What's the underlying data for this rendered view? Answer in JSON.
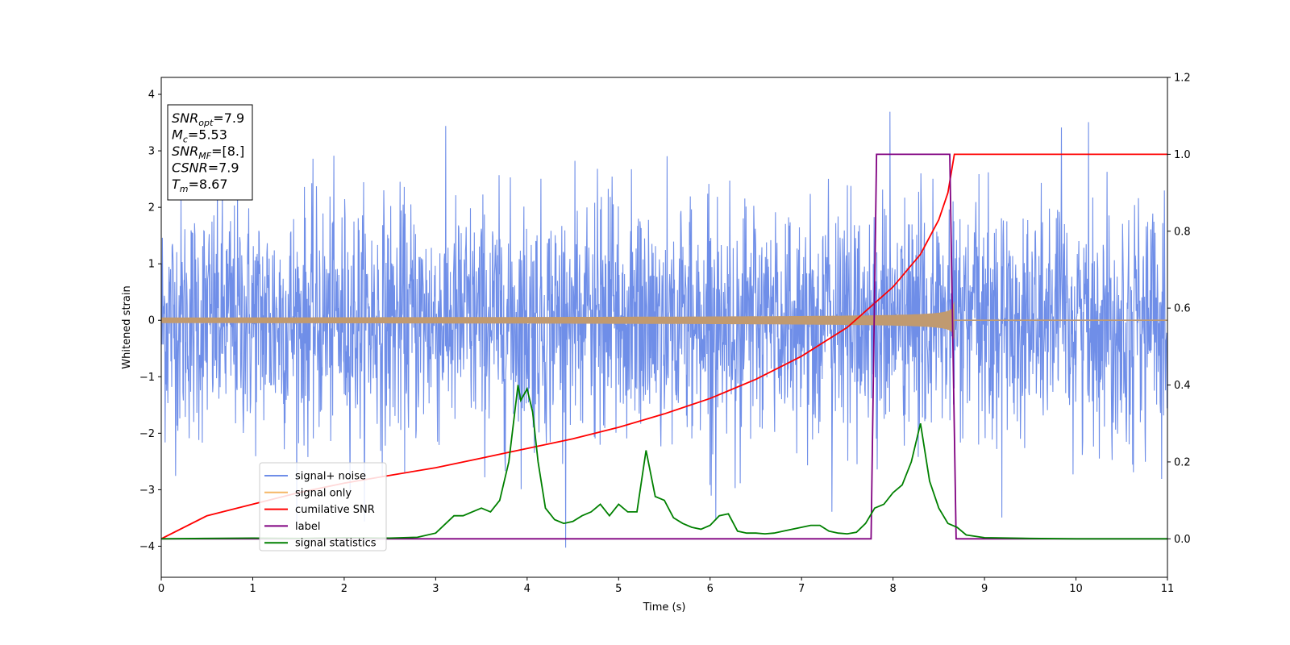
{
  "chart_data": {
    "type": "line",
    "xlabel": "Time (s)",
    "ylabel": "Whitened strain",
    "xlim": [
      0,
      11
    ],
    "ylim": [
      -4.55,
      4.3
    ],
    "y2lim": [
      -0.1,
      1.2
    ],
    "xticks": [
      0,
      1,
      2,
      3,
      4,
      5,
      6,
      7,
      8,
      9,
      10,
      11
    ],
    "xtick_labels": [
      "0",
      "1",
      "2",
      "3",
      "4",
      "5",
      "6",
      "7",
      "8",
      "9",
      "10",
      "11"
    ],
    "yticks": [
      4,
      3,
      2,
      1,
      0,
      -1,
      -2,
      -3,
      -4
    ],
    "ytick_labels": [
      "4",
      "3",
      "2",
      "1",
      "0",
      "−1",
      "−2",
      "−3",
      "−4"
    ],
    "y2ticks": [
      1.2,
      1.0,
      0.8,
      0.6,
      0.4,
      0.2,
      0.0
    ],
    "y2tick_labels": [
      "1.2",
      "1.0",
      "0.8",
      "0.6",
      "0.4",
      "0.2",
      "0.0"
    ],
    "grid": false,
    "legend_placement": "lower-left",
    "annotation": {
      "lines": [
        {
          "base": "SNR",
          "sub": "opt",
          "rest": "=7.9"
        },
        {
          "base": "M",
          "sub": "c",
          "rest": "=5.53"
        },
        {
          "base": "SNR",
          "sub": "MF",
          "rest": "=[8.]"
        },
        {
          "base": "CSNR",
          "sub": "",
          "rest": "=7.9"
        },
        {
          "base": "T",
          "sub": "m",
          "rest": "=8.67"
        }
      ]
    },
    "series": [
      {
        "name": "signal+ noise",
        "axis": "left",
        "color": "#6f8ee8",
        "noise": {
          "t_start": 0,
          "t_end": 11,
          "std": 1.0,
          "peak_max": 3.88,
          "peak_min": -4.15
        }
      },
      {
        "name": "signal only",
        "axis": "left",
        "color": "#f5b766",
        "chirp": {
          "t_start": 0,
          "t_merge": 8.67,
          "t_end": 11,
          "amp_start": 0.05,
          "amp_merge": 0.65
        }
      },
      {
        "name": "cumilative SNR",
        "axis": "right",
        "color": "#ff0000",
        "x": [
          0,
          0.5,
          1,
          1.5,
          2,
          2.5,
          3,
          3.5,
          4,
          4.5,
          5,
          5.5,
          6,
          6.5,
          7,
          7.5,
          8,
          8.3,
          8.5,
          8.6,
          8.67,
          9,
          10,
          11
        ],
        "y": [
          0.0,
          0.06,
          0.09,
          0.12,
          0.145,
          0.165,
          0.185,
          0.21,
          0.235,
          0.26,
          0.29,
          0.325,
          0.365,
          0.415,
          0.475,
          0.55,
          0.655,
          0.74,
          0.83,
          0.9,
          1.0,
          1.0,
          1.0,
          1.0
        ]
      },
      {
        "name": "label",
        "axis": "right",
        "color": "#800080",
        "x": [
          0,
          7.76,
          7.82,
          8.62,
          8.69,
          11
        ],
        "y": [
          0,
          0,
          1,
          1,
          0,
          0
        ]
      },
      {
        "name": "signal statistics",
        "axis": "right",
        "color": "#008000",
        "x": [
          0,
          0.5,
          1,
          1.5,
          2,
          2.5,
          2.8,
          3.0,
          3.2,
          3.3,
          3.4,
          3.5,
          3.6,
          3.7,
          3.8,
          3.9,
          3.93,
          4.0,
          4.06,
          4.12,
          4.2,
          4.3,
          4.4,
          4.5,
          4.6,
          4.7,
          4.8,
          4.9,
          5.0,
          5.1,
          5.2,
          5.3,
          5.4,
          5.5,
          5.6,
          5.7,
          5.8,
          5.9,
          6.0,
          6.1,
          6.2,
          6.3,
          6.4,
          6.5,
          6.6,
          6.7,
          6.8,
          6.9,
          7.0,
          7.1,
          7.2,
          7.3,
          7.4,
          7.5,
          7.6,
          7.7,
          7.8,
          7.9,
          8.0,
          8.1,
          8.2,
          8.3,
          8.4,
          8.5,
          8.6,
          8.7,
          8.8,
          9.0,
          9.5,
          10,
          11
        ],
        "y": [
          0.0,
          0.001,
          0.002,
          0.001,
          0.003,
          0.002,
          0.004,
          0.015,
          0.06,
          0.06,
          0.07,
          0.08,
          0.07,
          0.1,
          0.2,
          0.4,
          0.36,
          0.39,
          0.33,
          0.2,
          0.08,
          0.05,
          0.04,
          0.045,
          0.06,
          0.07,
          0.09,
          0.06,
          0.09,
          0.07,
          0.07,
          0.23,
          0.11,
          0.1,
          0.055,
          0.04,
          0.03,
          0.025,
          0.035,
          0.06,
          0.065,
          0.02,
          0.015,
          0.015,
          0.013,
          0.015,
          0.02,
          0.025,
          0.03,
          0.035,
          0.035,
          0.02,
          0.015,
          0.013,
          0.017,
          0.04,
          0.08,
          0.09,
          0.12,
          0.14,
          0.2,
          0.3,
          0.15,
          0.08,
          0.04,
          0.03,
          0.01,
          0.003,
          0.001,
          0.0,
          0.0
        ]
      }
    ]
  }
}
